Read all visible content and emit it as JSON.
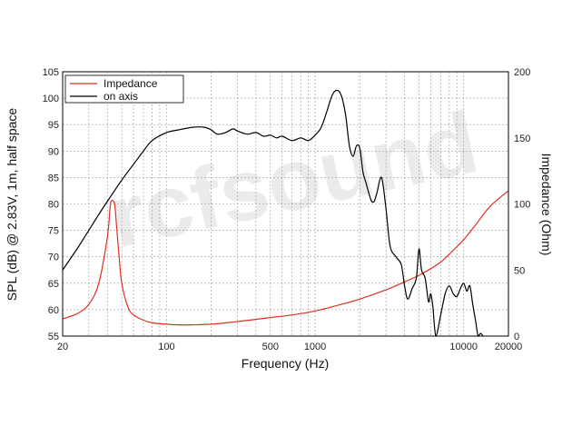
{
  "chart_data": {
    "type": "line",
    "xlabel": "Frequency (Hz)",
    "ylabel": "SPL (dB) @ 2.83V, 1m, half space",
    "y2label": "Impedance (Ohm)",
    "xscale": "log",
    "xlim": [
      20,
      20000
    ],
    "ylim": [
      55,
      105
    ],
    "y2lim": [
      0,
      200
    ],
    "grid": true,
    "legend_position": "top-left",
    "watermark": "rcfsound",
    "x_tick_labels": [
      "20",
      "100",
      "500",
      "1000",
      "10000",
      "20000"
    ],
    "y_tick_labels": [
      "55",
      "60",
      "65",
      "70",
      "75",
      "80",
      "85",
      "90",
      "95",
      "100",
      "105"
    ],
    "y2_tick_labels": [
      "0",
      "50",
      "100",
      "150",
      "200"
    ],
    "series": [
      {
        "name": "Impedance",
        "axis": "right",
        "color": "#e03020",
        "x": [
          20,
          25,
          30,
          35,
          40,
          42,
          44,
          45,
          46,
          48,
          50,
          55,
          60,
          70,
          80,
          100,
          120,
          150,
          200,
          300,
          500,
          700,
          1000,
          1500,
          2000,
          3000,
          4000,
          5000,
          6000,
          7000,
          8000,
          10000,
          12000,
          15000,
          20000
        ],
        "y": [
          13,
          17,
          24,
          40,
          75,
          100,
          102,
          98,
          85,
          60,
          40,
          22,
          16,
          12,
          10,
          9,
          8.5,
          8.5,
          9,
          11,
          14,
          16,
          19,
          24,
          28,
          35,
          41,
          46,
          51,
          56,
          62,
          73,
          84,
          98,
          110
        ]
      },
      {
        "name": "on axis",
        "axis": "left",
        "color": "#000000",
        "x": [
          20,
          25,
          30,
          35,
          40,
          50,
          60,
          70,
          80,
          100,
          120,
          150,
          180,
          200,
          220,
          250,
          280,
          300,
          350,
          400,
          450,
          500,
          550,
          600,
          700,
          800,
          900,
          1000,
          1100,
          1200,
          1300,
          1400,
          1500,
          1600,
          1700,
          1800,
          1900,
          2000,
          2100,
          2200,
          2300,
          2400,
          2500,
          2600,
          2800,
          3000,
          3200,
          3500,
          3800,
          4000,
          4200,
          4500,
          4800,
          5000,
          5200,
          5500,
          5800,
          6000,
          6200,
          6500,
          7000,
          7500,
          8000,
          8500,
          9000,
          9500,
          10000,
          10500,
          11000,
          11500,
          12000,
          12500,
          13000,
          13500
        ],
        "y": [
          67.5,
          71.5,
          75,
          78,
          80.5,
          84.5,
          87.5,
          90,
          92,
          93.5,
          94,
          94.5,
          94.5,
          94,
          93.2,
          93.5,
          94.2,
          93.8,
          93.2,
          93.5,
          92.8,
          93,
          92.5,
          92.8,
          92,
          92.5,
          92,
          93,
          94.5,
          97.5,
          100.5,
          101.5,
          100.5,
          97,
          91,
          89,
          91,
          90.5,
          86,
          84,
          82,
          80.5,
          80.5,
          82,
          85,
          79,
          72,
          70,
          68.5,
          64.5,
          62,
          64,
          66,
          71.5,
          67.5,
          66,
          61.5,
          63,
          60.5,
          55,
          59,
          63,
          64.5,
          63,
          62.5,
          64,
          65,
          63.5,
          64.5,
          61,
          58,
          55,
          55.5,
          54.8
        ]
      }
    ]
  }
}
